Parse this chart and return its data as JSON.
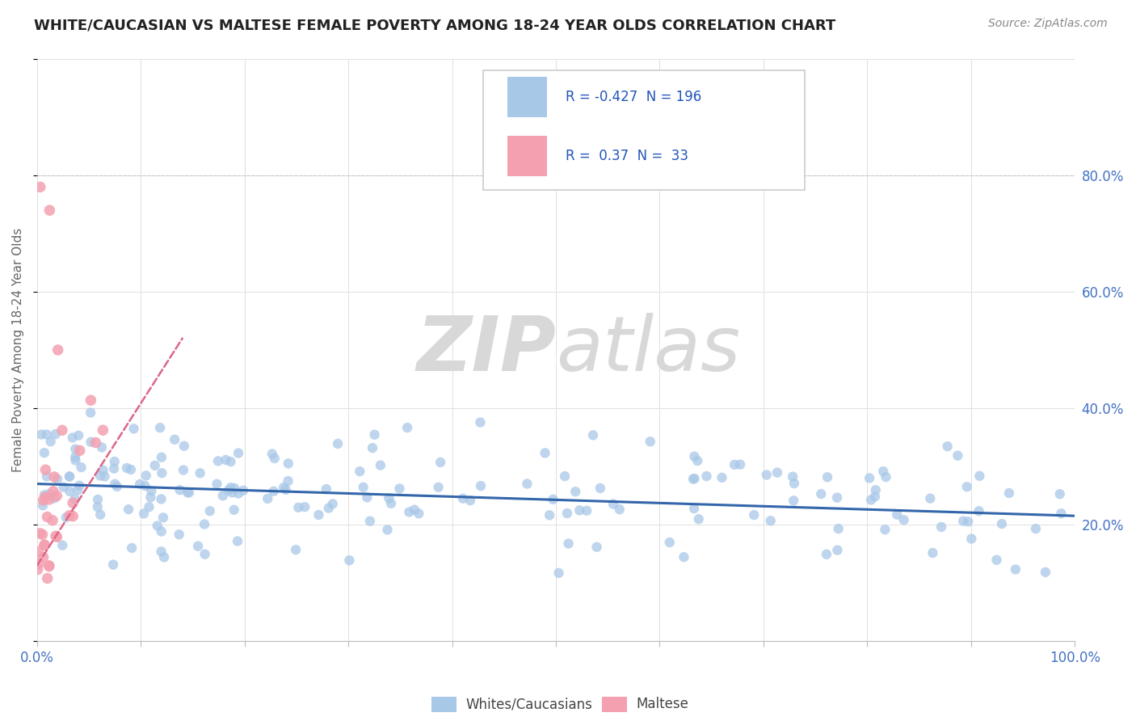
{
  "title": "WHITE/CAUCASIAN VS MALTESE FEMALE POVERTY AMONG 18-24 YEAR OLDS CORRELATION CHART",
  "source": "Source: ZipAtlas.com",
  "ylabel": "Female Poverty Among 18-24 Year Olds",
  "xlim": [
    0,
    100
  ],
  "ylim": [
    0,
    100
  ],
  "xtick_positions": [
    0,
    10,
    20,
    30,
    40,
    50,
    60,
    70,
    80,
    90,
    100
  ],
  "xticklabels": [
    "0.0%",
    "",
    "",
    "",
    "",
    "",
    "",
    "",
    "",
    "",
    "100.0%"
  ],
  "yticks_right": [
    20,
    40,
    60,
    80
  ],
  "ytick_labels_right": [
    "20.0%",
    "40.0%",
    "60.0%",
    "80.0%"
  ],
  "blue_R": -0.427,
  "blue_N": 196,
  "pink_R": 0.37,
  "pink_N": 33,
  "blue_color": "#a8c8e8",
  "pink_color": "#f4a0b0",
  "blue_line_color": "#3366aa",
  "pink_line_color": "#dd6688",
  "watermark_zip": "ZIP",
  "watermark_atlas": "atlas",
  "watermark_color": "#d8d8d8",
  "legend_blue_label": "Whites/Caucasians",
  "legend_pink_label": "Maltese",
  "grid_color": "#e0e0e0",
  "background_color": "#ffffff",
  "title_color": "#222222",
  "source_color": "#888888",
  "tick_label_color": "#4472c4",
  "ylabel_color": "#666666",
  "seed": 42,
  "blue_scatter_size": 80,
  "pink_scatter_size": 95,
  "legend_text_color": "#2255bb"
}
